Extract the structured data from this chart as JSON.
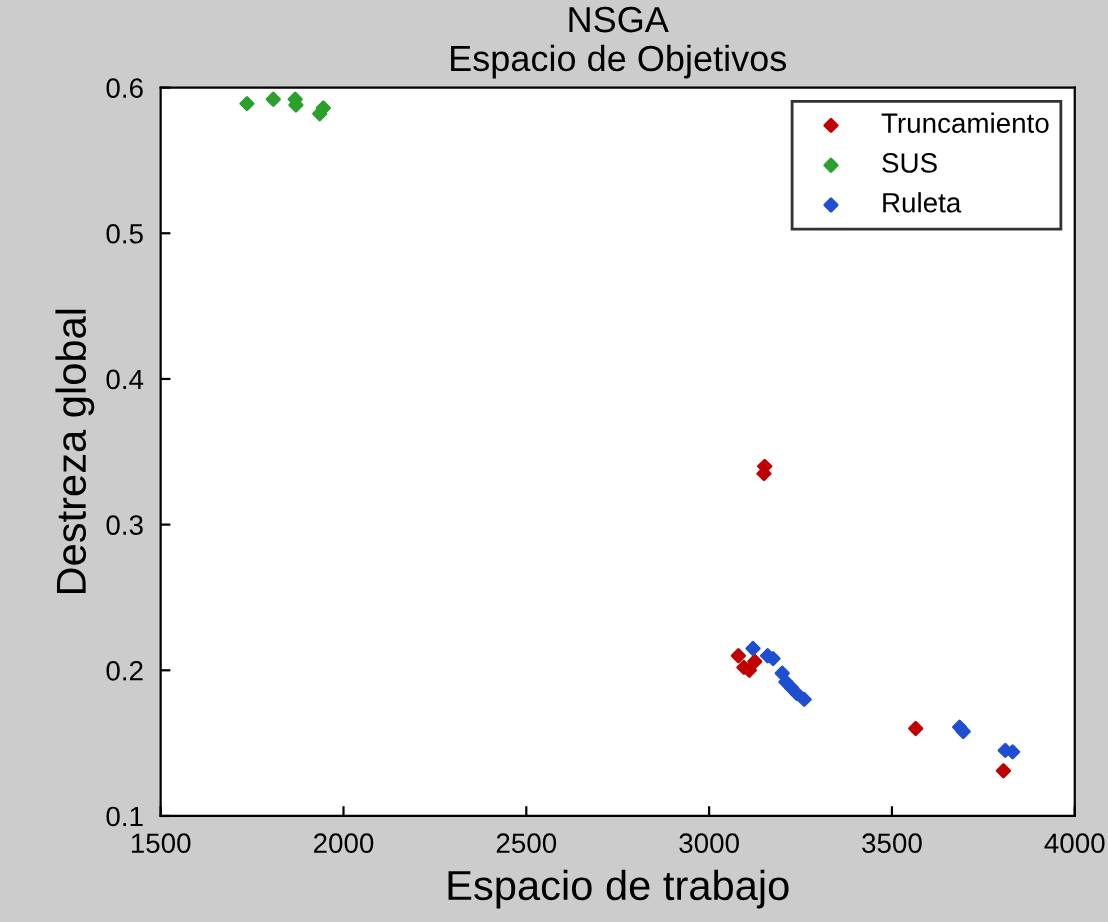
{
  "chart_data": {
    "type": "scatter",
    "title": "NSGA\nEspacio de Objetivos",
    "xlabel": "Espacio de trabajo",
    "ylabel": "Destreza global",
    "xlim": [
      1500,
      4000
    ],
    "ylim": [
      0.1,
      0.6
    ],
    "xticks": [
      1500,
      2000,
      2500,
      3000,
      3500,
      4000
    ],
    "yticks": [
      0.1,
      0.2,
      0.3,
      0.4,
      0.5,
      0.6
    ],
    "marker": "diamond",
    "legend": "top right",
    "grid": false,
    "series": [
      {
        "name": "Truncamiento",
        "color": "#c00000",
        "x": [
          3080,
          3095,
          3110,
          3125,
          3150,
          3152,
          3565,
          3805
        ],
        "values": [
          0.21,
          0.202,
          0.2,
          0.206,
          0.335,
          0.34,
          0.16,
          0.131
        ]
      },
      {
        "name": "SUS",
        "color": "#2ca02c",
        "x": [
          1736,
          1808,
          1868,
          1870,
          1935,
          1945
        ],
        "values": [
          0.589,
          0.592,
          0.592,
          0.588,
          0.582,
          0.586
        ]
      },
      {
        "name": "Ruleta",
        "color": "#1f4fd0",
        "x": [
          3120,
          3160,
          3175,
          3200,
          3210,
          3225,
          3240,
          3260,
          3685,
          3695,
          3810,
          3830
        ],
        "values": [
          0.215,
          0.21,
          0.208,
          0.198,
          0.192,
          0.188,
          0.184,
          0.18,
          0.161,
          0.158,
          0.145,
          0.144
        ]
      }
    ]
  }
}
